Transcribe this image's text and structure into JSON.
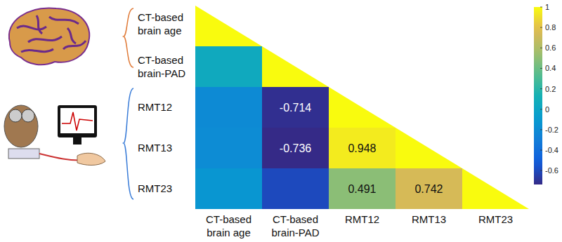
{
  "chart_data": {
    "type": "heatmap",
    "rows": [
      "CT-based brain age",
      "CT-based brain-PAD",
      "RMT12",
      "RMT13",
      "RMT23"
    ],
    "columns": [
      "CT-based brain age",
      "CT-based brain-PAD",
      "RMT12",
      "RMT13",
      "RMT23"
    ],
    "values": [
      [
        1,
        null,
        null,
        null,
        null
      ],
      [
        0.05,
        1,
        null,
        null,
        null
      ],
      [
        -0.21,
        -0.714,
        1,
        null,
        null
      ],
      [
        -0.2,
        -0.736,
        0.948,
        1,
        null
      ],
      [
        -0.13,
        -0.6,
        0.491,
        0.742,
        1
      ]
    ],
    "value_labels": [
      [
        null,
        null,
        null,
        null,
        null
      ],
      [
        null,
        null,
        null,
        null,
        null
      ],
      [
        null,
        "-0.714",
        null,
        null,
        null
      ],
      [
        null,
        "-0.736",
        "0.948",
        null,
        null
      ],
      [
        null,
        null,
        "0.491",
        "0.742",
        null
      ]
    ],
    "clim": [
      -0.736,
      1
    ],
    "colorbar_ticks": [
      1,
      0.8,
      0.6,
      0.4,
      0.2,
      0,
      -0.2,
      -0.4,
      -0.6
    ]
  }
}
